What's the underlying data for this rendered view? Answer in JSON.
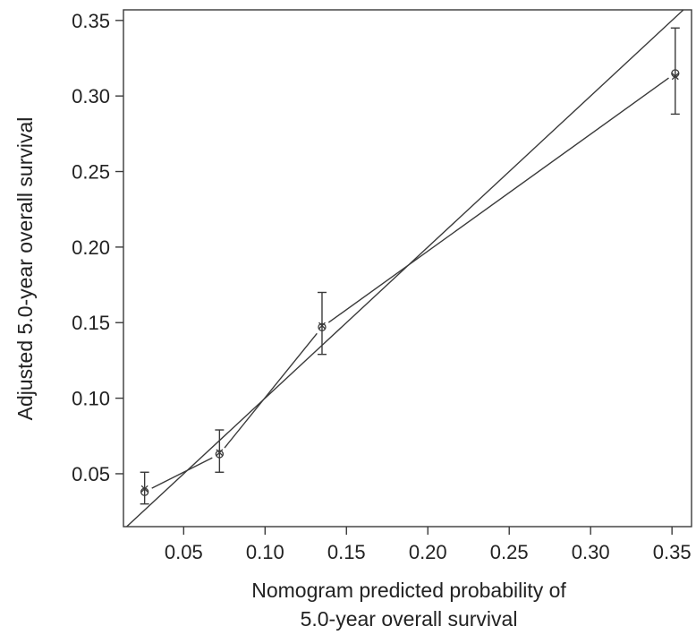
{
  "chart_data": {
    "type": "scatter",
    "title": "",
    "xlabel_lines": [
      "Nomogram predicted probability of",
      "5.0-year overall survival"
    ],
    "ylabel": "Adjusted 5.0-year overall survival",
    "xlim": [
      0.013,
      0.362
    ],
    "ylim": [
      0.015,
      0.357
    ],
    "x_ticks": [
      0.05,
      0.1,
      0.15,
      0.2,
      0.25,
      0.3,
      0.35
    ],
    "x_tick_labels": [
      "0.05",
      "0.10",
      "0.15",
      "0.20",
      "0.25",
      "0.30",
      "0.35"
    ],
    "y_ticks": [
      0.05,
      0.1,
      0.15,
      0.2,
      0.25,
      0.3,
      0.35
    ],
    "y_tick_labels": [
      "0.05",
      "0.10",
      "0.15",
      "0.20",
      "0.25",
      "0.30",
      "0.35"
    ],
    "grid": false,
    "reference_line": "ideal (y = x)",
    "series": [
      {
        "marker": "circle",
        "x": [
          0.026,
          0.072,
          0.135,
          0.352
        ],
        "y": [
          0.038,
          0.063,
          0.147,
          0.315
        ],
        "error_low": [
          0.03,
          0.051,
          0.129,
          0.288
        ],
        "error_high": [
          0.051,
          0.079,
          0.17,
          0.345
        ]
      },
      {
        "marker": "x",
        "x": [
          0.026,
          0.072,
          0.135,
          0.352
        ],
        "y": [
          0.04,
          0.064,
          0.148,
          0.313
        ]
      }
    ]
  }
}
